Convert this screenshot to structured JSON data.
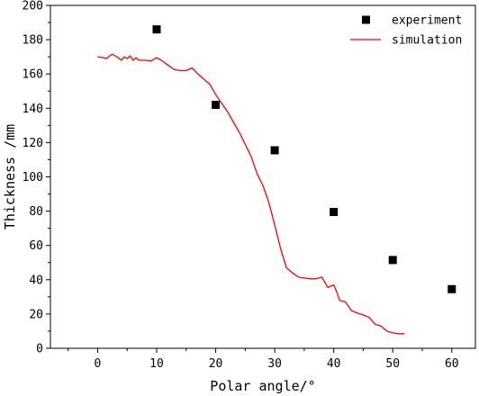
{
  "chart_data": {
    "type": "scatter",
    "xlabel": "Polar angle/°",
    "ylabel": "Thickness /mm",
    "xlim": [
      -8,
      64
    ],
    "ylim": [
      0,
      200
    ],
    "xticks": [
      0,
      10,
      20,
      30,
      40,
      50,
      60
    ],
    "yticks": [
      0,
      20,
      40,
      60,
      80,
      100,
      120,
      140,
      160,
      180,
      200
    ],
    "grid": false,
    "legend_position": "top-right",
    "series": [
      {
        "name": "experiment",
        "kind": "scatter",
        "marker": "square",
        "color": "#000000",
        "x": [
          10,
          20,
          30,
          40,
          50,
          60
        ],
        "y": [
          186,
          142,
          115.5,
          79.5,
          51.5,
          34.5
        ]
      },
      {
        "name": "simulation",
        "kind": "line",
        "color": "#ff0000",
        "x": [
          0,
          1,
          1.5,
          2,
          2.5,
          3,
          3.5,
          4,
          4.5,
          5,
          5.5,
          6,
          6.5,
          7,
          8,
          9,
          10,
          11,
          12,
          13,
          14,
          15,
          16,
          17,
          18,
          19,
          20,
          21,
          22,
          23,
          24,
          25,
          26,
          27,
          28,
          29,
          30,
          31,
          32,
          33,
          34,
          35,
          36,
          37,
          38,
          39,
          40,
          40.5,
          41,
          42,
          43,
          44,
          45,
          46,
          47,
          48,
          49,
          50,
          51,
          52
        ],
        "y": [
          170,
          169.5,
          169,
          170.5,
          171.5,
          170.5,
          169.5,
          168,
          170,
          169,
          170.5,
          168,
          169.5,
          168,
          168,
          167.5,
          169.5,
          167.5,
          165,
          162.5,
          162,
          162,
          163.5,
          160,
          157,
          154,
          148,
          143,
          138,
          132,
          126,
          119,
          112,
          102,
          95,
          85,
          72,
          58,
          47,
          44,
          41.5,
          41,
          40.5,
          40.5,
          41.5,
          35.5,
          37,
          33,
          28,
          27,
          22,
          20.5,
          19.5,
          18,
          14,
          13,
          10,
          9,
          8.5,
          8.5
        ]
      }
    ]
  }
}
